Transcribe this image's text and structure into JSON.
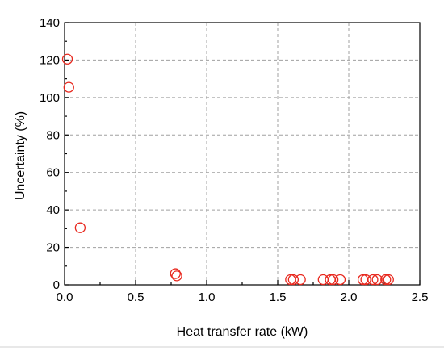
{
  "chart_data": {
    "type": "scatter",
    "xlabel": "Heat transfer rate (kW)",
    "ylabel": "Uncertainty (%)",
    "xlim": [
      0.0,
      2.5
    ],
    "ylim": [
      0,
      140
    ],
    "xticks": [
      0.0,
      0.5,
      1.0,
      1.5,
      2.0,
      2.5
    ],
    "xtick_labels": [
      "0.0",
      "0.5",
      "1.0",
      "1.5",
      "2.0",
      "2.5"
    ],
    "yticks": [
      0,
      20,
      40,
      60,
      80,
      100,
      120,
      140
    ],
    "ytick_labels": [
      "0",
      "20",
      "40",
      "60",
      "80",
      "100",
      "120",
      "140"
    ],
    "grid": true,
    "marker": "open-circle",
    "marker_color": "#e8281e",
    "points": [
      {
        "x": 0.02,
        "y": 120.5
      },
      {
        "x": 0.03,
        "y": 105.5
      },
      {
        "x": 0.11,
        "y": 30.5
      },
      {
        "x": 0.78,
        "y": 6.0
      },
      {
        "x": 0.79,
        "y": 4.8
      },
      {
        "x": 1.59,
        "y": 2.8
      },
      {
        "x": 1.61,
        "y": 2.8
      },
      {
        "x": 1.66,
        "y": 2.8
      },
      {
        "x": 1.82,
        "y": 2.8
      },
      {
        "x": 1.87,
        "y": 2.8
      },
      {
        "x": 1.89,
        "y": 2.8
      },
      {
        "x": 1.94,
        "y": 2.8
      },
      {
        "x": 2.1,
        "y": 2.8
      },
      {
        "x": 2.12,
        "y": 2.8
      },
      {
        "x": 2.17,
        "y": 2.8
      },
      {
        "x": 2.2,
        "y": 2.8
      },
      {
        "x": 2.26,
        "y": 2.8
      },
      {
        "x": 2.28,
        "y": 2.8
      }
    ]
  }
}
